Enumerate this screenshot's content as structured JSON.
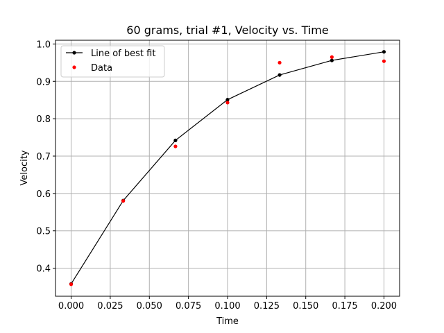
{
  "chart_data": {
    "type": "line",
    "title": "60 grams, trial #1, Velocity vs. Time",
    "xlabel": "Time",
    "ylabel": "Velocity",
    "xlim": [
      -0.01,
      0.21
    ],
    "ylim": [
      0.325,
      1.01
    ],
    "grid": true,
    "legend_placement": "top-left",
    "x_ticks": [
      "0.000",
      "0.025",
      "0.050",
      "0.075",
      "0.100",
      "0.125",
      "0.150",
      "0.175",
      "0.200"
    ],
    "y_ticks": [
      "0.4",
      "0.5",
      "0.6",
      "0.7",
      "0.8",
      "0.9",
      "1.0"
    ],
    "series": [
      {
        "name": "Line of best fit",
        "style": "line-with-markers",
        "color": "#000000",
        "x": [
          0.0,
          0.0333,
          0.0667,
          0.1,
          0.1333,
          0.1667,
          0.2
        ],
        "y": [
          0.358,
          0.581,
          0.742,
          0.851,
          0.917,
          0.956,
          0.979
        ]
      },
      {
        "name": "Data",
        "style": "markers",
        "color": "#ff0000",
        "x": [
          0.0,
          0.0333,
          0.0667,
          0.1,
          0.1333,
          0.1667,
          0.2
        ],
        "y": [
          0.357,
          0.58,
          0.726,
          0.843,
          0.95,
          0.965,
          0.954
        ]
      }
    ]
  }
}
